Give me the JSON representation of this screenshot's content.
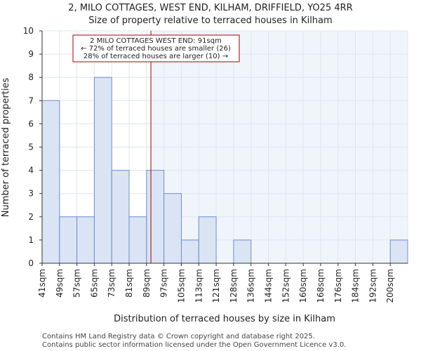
{
  "chart_data": {
    "type": "bar",
    "title": "2, MILO COTTAGES, WEST END, KILHAM, DRIFFIELD, YO25 4RR",
    "subtitle": "Size of property relative to terraced houses in Kilham",
    "xlabel": "Distribution of terraced houses by size in Kilham",
    "ylabel": "Number of terraced properties",
    "categories": [
      "41sqm",
      "49sqm",
      "57sqm",
      "65sqm",
      "73sqm",
      "81sqm",
      "89sqm",
      "97sqm",
      "105sqm",
      "113sqm",
      "121sqm",
      "128sqm",
      "136sqm",
      "144sqm",
      "152sqm",
      "160sqm",
      "168sqm",
      "176sqm",
      "184sqm",
      "192sqm",
      "200sqm"
    ],
    "values": [
      7,
      2,
      2,
      8,
      4,
      2,
      4,
      3,
      1,
      2,
      0,
      1,
      0,
      0,
      0,
      0,
      0,
      0,
      0,
      0,
      1
    ],
    "ylim": [
      0,
      10
    ],
    "yticks": [
      0,
      1,
      2,
      3,
      4,
      5,
      6,
      7,
      8,
      9,
      10
    ],
    "grid": true,
    "property_size_sqm": 91,
    "annotation": {
      "line1": "2 MILO COTTAGES WEST END: 91sqm",
      "line2": "← 72% of terraced houses are smaller (26)",
      "line3": "28% of terraced houses are larger (10) →"
    },
    "colors": {
      "bar_fill": "#dae4f4",
      "bar_stroke": "#6f8fc8",
      "marker_line": "#aa0000",
      "shade_right": "#f0f5fb",
      "grid": "#dfe6f0"
    }
  },
  "footer": {
    "line1": "Contains HM Land Registry data © Crown copyright and database right 2025.",
    "line2": "Contains public sector information licensed under the Open Government Licence v3.0."
  }
}
